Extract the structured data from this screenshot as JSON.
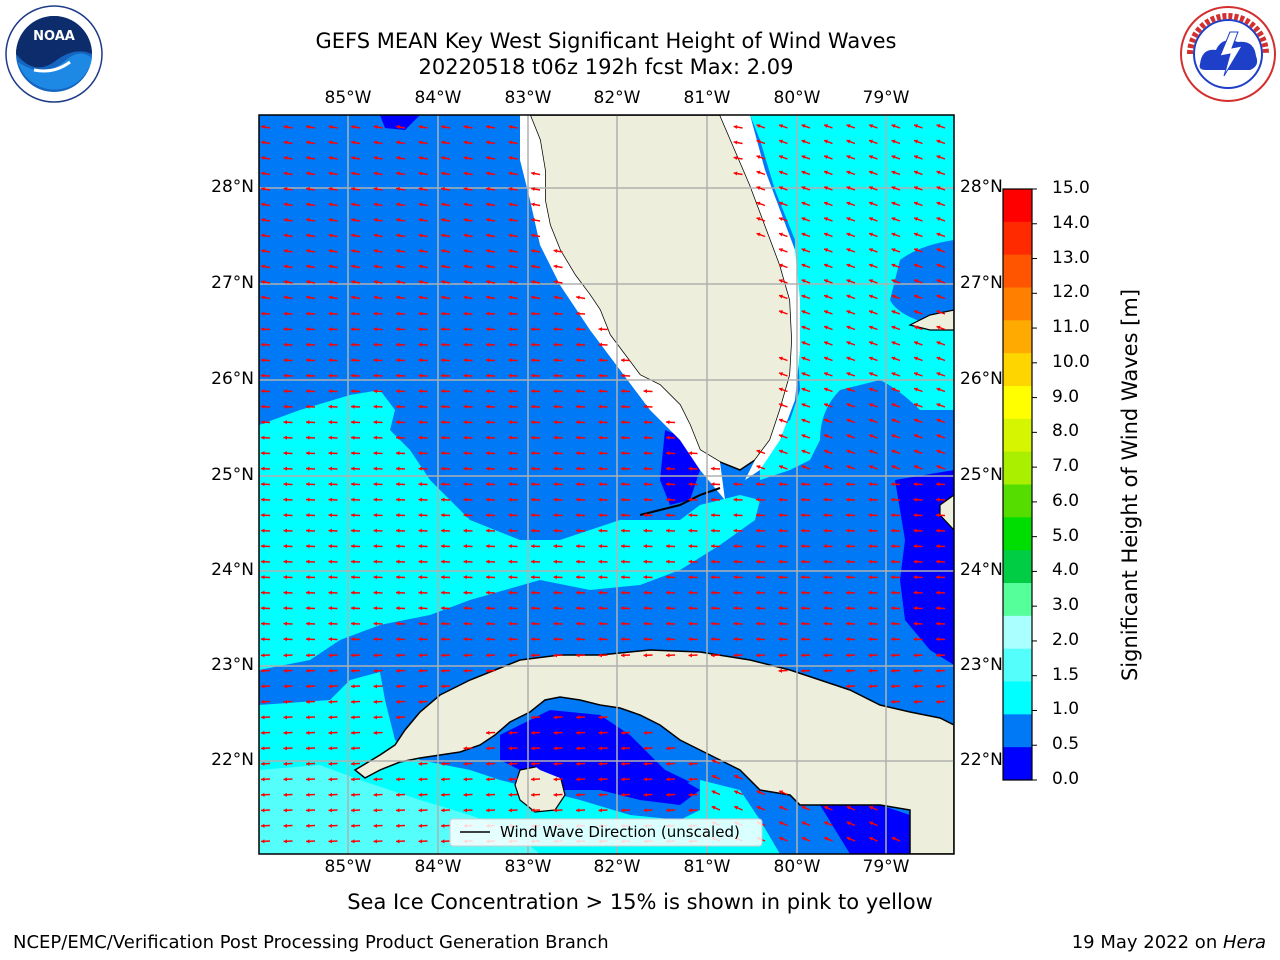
{
  "header": {
    "title_line1": "GEFS MEAN Key West Significant Height of Wind Waves",
    "title_line2": "20220518 t06z 192h fcst   Max: 2.09"
  },
  "logos": {
    "left": {
      "name": "noaa-logo",
      "text": "NOAA",
      "ring_text": "NATIONAL OCEANIC AND ATMOSPHERIC ADMINISTRATION · U.S. DEPARTMENT OF COMMERCE"
    },
    "right": {
      "name": "nws-logo",
      "ring_text": "NATIONAL WEATHER SERVICE"
    }
  },
  "map": {
    "lon_labels": [
      "85°W",
      "84°W",
      "83°W",
      "82°W",
      "81°W",
      "80°W",
      "79°W"
    ],
    "lat_labels": [
      "28°N",
      "27°N",
      "26°N",
      "25°N",
      "24°N",
      "23°N",
      "22°N"
    ],
    "legend_text": "Wind Wave Direction (unscaled)",
    "colors": {
      "deep_blue": "#0000ff",
      "mid_blue": "#0079f6",
      "cyan": "#00ffff",
      "light_cyan": "#54fffb",
      "land": "#eeeedc",
      "arrow": "#ff0000",
      "grid": "#b0b0b0"
    }
  },
  "colorbar": {
    "label": "Significant Height of Wind Waves [m]",
    "ticks": [
      "15.0",
      "14.0",
      "13.0",
      "12.0",
      "11.0",
      "10.0",
      "9.0",
      "8.0",
      "7.0",
      "6.0",
      "5.0",
      "4.0",
      "3.0",
      "2.0",
      "1.5",
      "1.0",
      "0.5",
      "0.0"
    ],
    "colors": [
      "#ff0000",
      "#ff2a00",
      "#ff5500",
      "#ff8000",
      "#ffaa00",
      "#ffd500",
      "#ffff00",
      "#d5f500",
      "#aaee00",
      "#55dd00",
      "#00dd00",
      "#00cc44",
      "#55ff99",
      "#aaffff",
      "#54fffb",
      "#00ffff",
      "#0079f6",
      "#0000ff"
    ]
  },
  "footer": {
    "ice_note": "Sea Ice Concentration > 15% is shown in pink to yellow",
    "left": "NCEP/EMC/Verification Post Processing Product Generation Branch",
    "right_date": "19 May 2022 on ",
    "right_host": "Hera"
  }
}
